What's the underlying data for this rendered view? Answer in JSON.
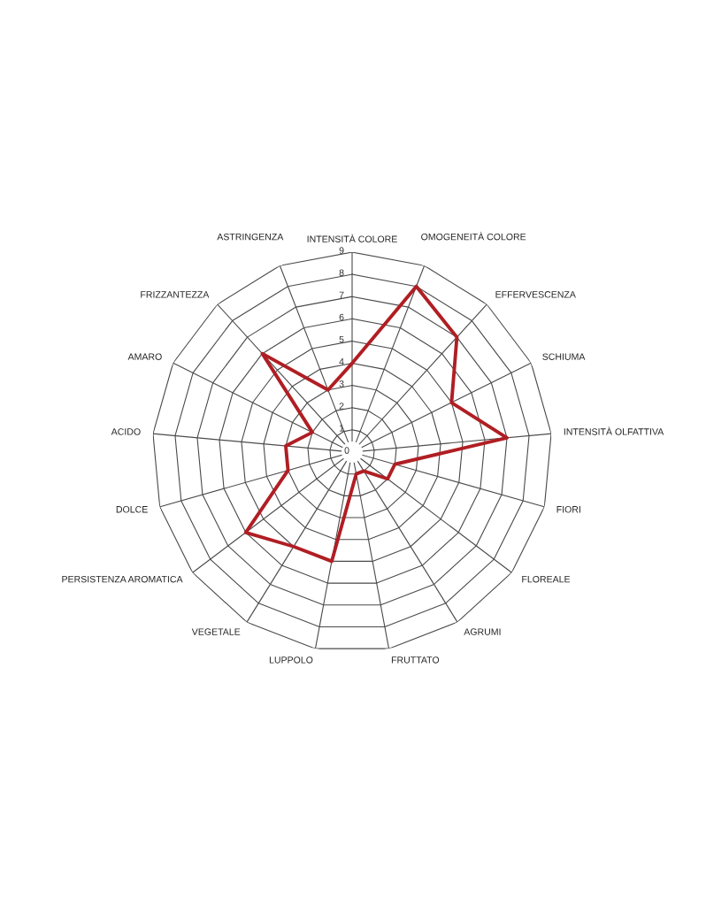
{
  "chart_data": {
    "type": "radar",
    "categories": [
      "INTENSITÀ COLORE",
      "OMOGENEITÀ COLORE",
      "EFFERVESCENZA",
      "SCHIUMA",
      "INTENSITÀ OLFATTIVA",
      "FIORI",
      "FLOREALE",
      "AGRUMI",
      "FRUTTATO",
      "LUPPOLO",
      "VEGETALE",
      "PERSISTENZA AROMATICA",
      "DOLCE",
      "ACIDO",
      "AMARO",
      "FRIZZANTEZZA",
      "ASTRINGENZA"
    ],
    "series": [
      {
        "color": "#b01e23",
        "values": [
          4,
          8,
          7,
          5,
          7,
          2,
          2,
          1,
          1,
          5,
          5,
          6,
          3,
          3,
          2,
          6,
          3
        ]
      }
    ],
    "ylim": [
      0,
      9
    ],
    "yticks": [
      0,
      1,
      2,
      3,
      4,
      5,
      6,
      7,
      8,
      9
    ],
    "grid": true,
    "line_style": "solid"
  }
}
